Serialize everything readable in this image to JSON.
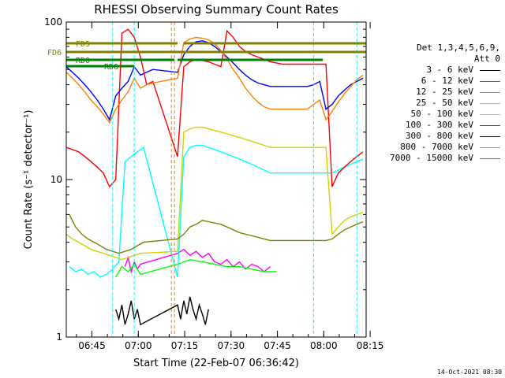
{
  "chart_data": {
    "type": "line",
    "title": "RHESSI Observing Summary Count Rates",
    "xlabel": "Start Time (22-Feb-07 06:36:42)",
    "ylabel": "Count Rate (s⁻¹ detector⁻¹)",
    "yscale": "log",
    "ylim": [
      1,
      100
    ],
    "xlim_minutes": [
      0,
      97
    ],
    "x_ticks": [
      "06:45",
      "07:00",
      "07:15",
      "07:30",
      "07:45",
      "08:00",
      "08:15"
    ],
    "y_ticks": [
      "1",
      "10",
      "100"
    ],
    "legend_header": [
      "Det 1,3,4,5,6,9,",
      "Att 0"
    ],
    "series": [
      {
        "name": "3 - 6 keV",
        "color": "#000000",
        "x": [
          16,
          17,
          18,
          19,
          20,
          21,
          22,
          23,
          24,
          36,
          37,
          38,
          39,
          40,
          41,
          42,
          43,
          44,
          45,
          46
        ],
        "y": [
          1.5,
          1.3,
          1.6,
          1.2,
          1.4,
          1.7,
          1.3,
          1.5,
          1.2,
          1.6,
          1.3,
          1.7,
          1.4,
          1.8,
          1.5,
          1.3,
          1.6,
          1.4,
          1.2,
          1.5
        ]
      },
      {
        "name": "6 - 12 keV",
        "color": "#ff00ff",
        "x": [
          19,
          20,
          21,
          22,
          23,
          24,
          36,
          38,
          40,
          42,
          44,
          46,
          48,
          50,
          52,
          54,
          56,
          58,
          60,
          62,
          64,
          66
        ],
        "y": [
          2.8,
          3.2,
          2.6,
          3.0,
          2.7,
          2.9,
          3.4,
          3.6,
          3.3,
          3.5,
          3.2,
          3.4,
          3.0,
          2.9,
          3.1,
          2.8,
          3.0,
          2.7,
          2.9,
          2.8,
          2.6,
          2.8
        ]
      },
      {
        "name": "12 - 25 keV",
        "color": "#00ff00",
        "x": [
          16,
          18,
          20,
          22,
          24,
          36,
          40,
          44,
          48,
          52,
          56,
          60,
          64,
          68
        ],
        "y": [
          2.4,
          2.8,
          2.6,
          2.9,
          2.5,
          2.9,
          3.1,
          3.0,
          2.9,
          2.8,
          2.8,
          2.7,
          2.6,
          2.6
        ]
      },
      {
        "name": "25 - 50 keV",
        "color": "#00ffff",
        "x": [
          1,
          3,
          5,
          7,
          9,
          11,
          13,
          15,
          17,
          19,
          21,
          23,
          25,
          36,
          38,
          40,
          42,
          44,
          46,
          48,
          50,
          52,
          54,
          56,
          58,
          60,
          62,
          64,
          66,
          68,
          70,
          72,
          74,
          76,
          78,
          80,
          82,
          84,
          86,
          88,
          90,
          92,
          94,
          96
        ],
        "y": [
          2.8,
          2.6,
          2.7,
          2.5,
          2.6,
          2.4,
          2.5,
          2.7,
          3.0,
          13,
          14,
          15,
          16,
          2.4,
          14,
          16,
          16.5,
          16.5,
          16,
          15.5,
          15,
          14.5,
          14,
          13.5,
          13,
          12.5,
          12,
          11.5,
          11,
          11,
          11,
          11,
          11,
          11,
          11,
          11,
          11,
          11,
          11,
          11.5,
          12,
          12.5,
          13,
          13.5
        ]
      },
      {
        "name": "50 - 100 keV",
        "color": "#d2d200",
        "x": [
          0,
          2,
          4,
          6,
          8,
          10,
          12,
          14,
          16,
          18,
          20,
          22,
          24,
          36,
          38,
          40,
          42,
          44,
          46,
          48,
          50,
          52,
          54,
          56,
          58,
          60,
          62,
          64,
          66,
          68,
          70,
          72,
          74,
          76,
          78,
          80,
          82,
          84,
          86,
          88,
          90,
          92,
          94,
          96
        ],
        "y": [
          4.5,
          4.2,
          4,
          3.8,
          3.6,
          3.5,
          3.4,
          3.3,
          3.2,
          3.1,
          3.2,
          3.3,
          3.4,
          3.5,
          20,
          21,
          21.5,
          21.5,
          21,
          20.5,
          20,
          19.5,
          19,
          18.5,
          18,
          17.5,
          17,
          16.5,
          16,
          16,
          16,
          16,
          16,
          16,
          16,
          16,
          16,
          16,
          4.5,
          5,
          5.5,
          5.8,
          6,
          6.2
        ]
      },
      {
        "name": "100 - 300 keV",
        "color": "#ff0000",
        "x": [
          0,
          2,
          4,
          6,
          8,
          10,
          12,
          14,
          16,
          18,
          20,
          22,
          24,
          26,
          28,
          36,
          38,
          40,
          42,
          44,
          46,
          48,
          50,
          52,
          54,
          56,
          58,
          60,
          62,
          64,
          66,
          68,
          70,
          72,
          74,
          76,
          78,
          80,
          82,
          84,
          86,
          88,
          90,
          92,
          94,
          96
        ],
        "y": [
          16,
          15.5,
          15,
          14,
          13,
          12,
          11,
          9,
          10,
          85,
          90,
          80,
          60,
          40,
          42,
          14,
          52,
          56,
          58,
          57,
          56,
          54,
          52,
          88,
          80,
          70,
          65,
          62,
          60,
          58,
          56,
          55,
          54,
          54,
          54,
          54,
          54,
          54,
          54,
          54,
          9,
          11,
          12,
          13,
          14,
          15
        ]
      },
      {
        "name": "300 - 800 keV",
        "color": "#0000ff",
        "x": [
          0,
          2,
          4,
          6,
          8,
          10,
          12,
          14,
          16,
          18,
          20,
          22,
          24,
          26,
          28,
          36,
          38,
          40,
          42,
          44,
          46,
          48,
          50,
          52,
          54,
          56,
          58,
          60,
          62,
          64,
          66,
          68,
          70,
          72,
          74,
          76,
          78,
          80,
          82,
          84,
          86,
          88,
          90,
          92,
          94,
          96
        ],
        "y": [
          52,
          48,
          44,
          40,
          36,
          32,
          28,
          24,
          34,
          38,
          42,
          52,
          46,
          48,
          50,
          48,
          62,
          70,
          75,
          76,
          74,
          70,
          65,
          60,
          55,
          50,
          46,
          43,
          41,
          40,
          39,
          39,
          39,
          39,
          39,
          39,
          39,
          40,
          42,
          28,
          30,
          34,
          37,
          40,
          42,
          44
        ]
      },
      {
        "name": "800 - 7000 keV",
        "color": "#ff8000",
        "x": [
          0,
          2,
          4,
          6,
          8,
          10,
          12,
          14,
          16,
          18,
          20,
          22,
          24,
          26,
          28,
          36,
          38,
          40,
          42,
          44,
          46,
          48,
          50,
          52,
          54,
          56,
          58,
          60,
          62,
          64,
          66,
          68,
          70,
          72,
          74,
          76,
          78,
          80,
          82,
          84,
          86,
          88,
          90,
          92,
          94,
          96
        ],
        "y": [
          48,
          44,
          40,
          36,
          32,
          29,
          26,
          23,
          28,
          32,
          36,
          44,
          38,
          40,
          41,
          44,
          74,
          78,
          80,
          79,
          77,
          73,
          66,
          58,
          50,
          44,
          38,
          34,
          31,
          29,
          28,
          28,
          28,
          28,
          28,
          28,
          28,
          30,
          32,
          24,
          27,
          31,
          35,
          39,
          43,
          46
        ]
      },
      {
        "name": "7000 - 15000 keV",
        "color": "#808000",
        "x": [
          1,
          3,
          5,
          7,
          9,
          11,
          13,
          15,
          17,
          19,
          21,
          23,
          25,
          36,
          38,
          40,
          42,
          44,
          46,
          48,
          50,
          52,
          54,
          56,
          58,
          60,
          62,
          64,
          66,
          68,
          70,
          72,
          74,
          76,
          78,
          80,
          82,
          84,
          86,
          88,
          90,
          92,
          94,
          96
        ],
        "y": [
          6,
          5,
          4.5,
          4.2,
          4,
          3.8,
          3.6,
          3.5,
          3.4,
          3.5,
          3.6,
          3.8,
          4,
          4.2,
          4.5,
          5,
          5.2,
          5.5,
          5.4,
          5.3,
          5.2,
          5,
          4.8,
          4.6,
          4.5,
          4.4,
          4.3,
          4.2,
          4.1,
          4.1,
          4.1,
          4.1,
          4.1,
          4.1,
          4.1,
          4.1,
          4.1,
          4.1,
          4.2,
          4.5,
          4.8,
          5,
          5.2,
          5.4
        ]
      }
    ],
    "flag_bars": [
      {
        "label": "FD5",
        "color": "#808000",
        "segments": [
          [
            0,
            36
          ],
          [
            38,
            97
          ]
        ]
      },
      {
        "label": "FD6",
        "color": "#808000",
        "segments": [
          [
            0,
            97
          ]
        ]
      },
      {
        "label": "RD0",
        "color": "#008000",
        "segments": [
          [
            0,
            35
          ],
          [
            36,
            83
          ]
        ]
      },
      {
        "label": "RD6",
        "color": "#008000",
        "segments": [
          [
            0,
            22
          ]
        ]
      }
    ],
    "vertical_markers": [
      {
        "color": "#00ffff",
        "x": [
          15,
          22,
          80,
          94
        ]
      },
      {
        "color": "#ff8000",
        "x": [
          34,
          35
        ]
      }
    ]
  },
  "timestamp": "14-Oct-2021 08:30"
}
